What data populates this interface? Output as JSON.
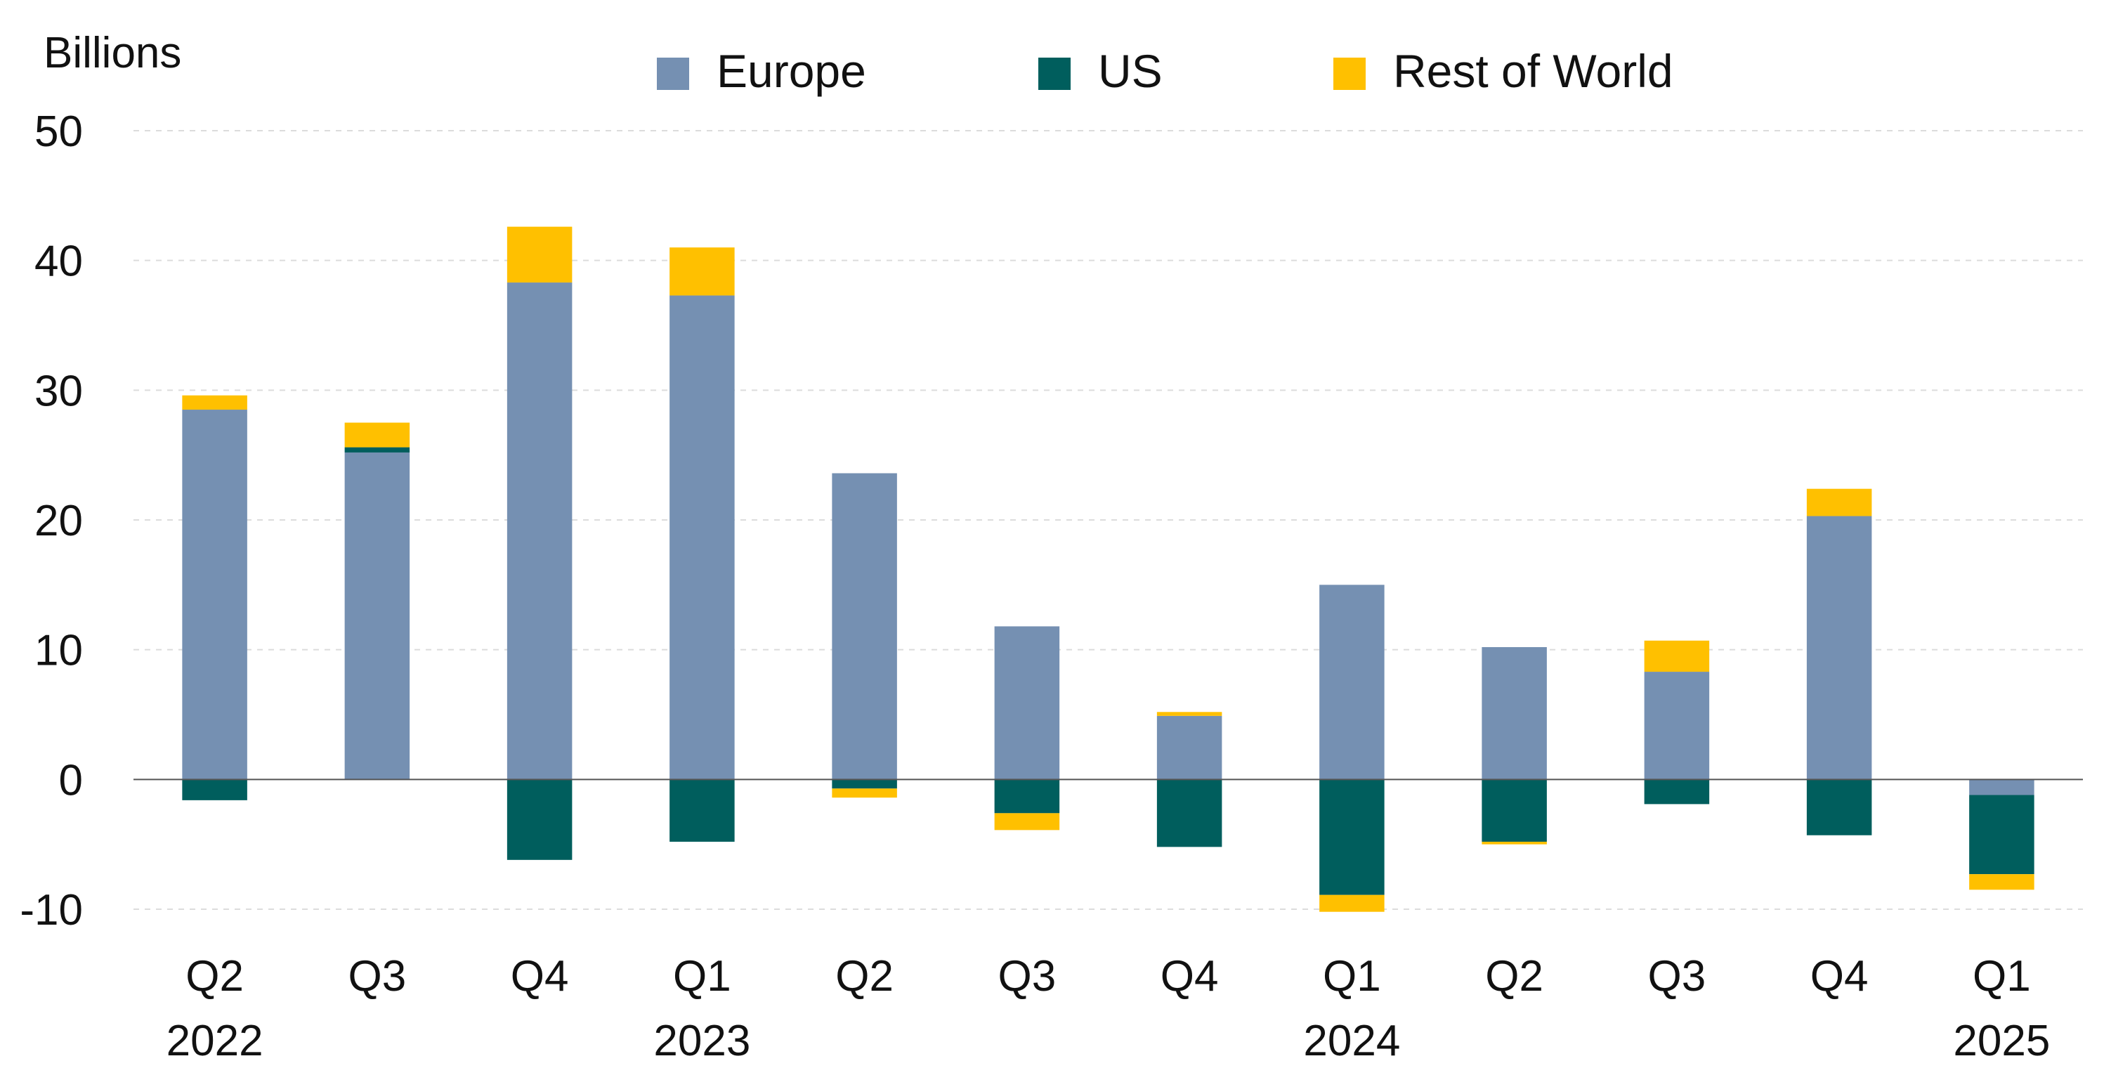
{
  "chart_data": {
    "type": "bar",
    "stacked": true,
    "unit_label": "Billions",
    "categories": [
      "Q2",
      "Q3",
      "Q4",
      "Q1",
      "Q2",
      "Q3",
      "Q4",
      "Q1",
      "Q2",
      "Q3",
      "Q4",
      "Q1"
    ],
    "year_labels": [
      "2022",
      "",
      "",
      "2023",
      "",
      "",
      "",
      "2024",
      "",
      "",
      "",
      "2025"
    ],
    "series": [
      {
        "name": "Europe",
        "color": "#7590b2",
        "values": [
          28.5,
          25.2,
          38.3,
          37.3,
          23.6,
          11.8,
          4.9,
          15.0,
          10.2,
          8.3,
          20.3,
          -1.2
        ]
      },
      {
        "name": "US",
        "color": "#005e5d",
        "values": [
          -1.6,
          0.4,
          -6.2,
          -4.8,
          -0.7,
          -2.6,
          -5.2,
          -8.9,
          -4.8,
          -1.9,
          -4.3,
          -6.1
        ]
      },
      {
        "name": "Rest of World",
        "color": "#ffc000",
        "values": [
          1.1,
          1.9,
          4.3,
          3.7,
          -0.7,
          -1.3,
          0.3,
          -1.3,
          -0.2,
          2.4,
          2.1,
          -1.2
        ]
      }
    ],
    "ylim": [
      -10,
      50
    ],
    "yticks": [
      -10,
      0,
      10,
      20,
      30,
      40,
      50
    ],
    "grid": true,
    "legend_position": "top"
  }
}
